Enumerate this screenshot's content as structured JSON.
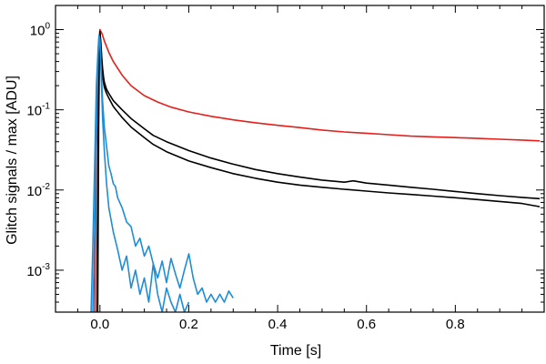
{
  "chart_data": {
    "type": "line",
    "title": "",
    "xlabel": "Time [s]",
    "ylabel": "Glitch signals / max [ADU]",
    "xlim": [
      -0.1,
      1.0
    ],
    "ylim": [
      0.0003,
      2.0
    ],
    "yscale": "log",
    "grid": false,
    "legend": "none",
    "x_ticks": [
      {
        "value": 0.0,
        "label": "0.0"
      },
      {
        "value": 0.2,
        "label": "0.2"
      },
      {
        "value": 0.4,
        "label": "0.4"
      },
      {
        "value": 0.6,
        "label": "0.6"
      },
      {
        "value": 0.8,
        "label": "0.8"
      }
    ],
    "y_ticks": [
      {
        "value": 1.0,
        "base": "10",
        "exp": "0"
      },
      {
        "value": 0.1,
        "base": "10",
        "exp": "-1"
      },
      {
        "value": 0.01,
        "base": "10",
        "exp": "-2"
      },
      {
        "value": 0.001,
        "base": "10",
        "exp": "-3"
      }
    ],
    "series": [
      {
        "color": "#e3201b",
        "x": [
          -0.012,
          -0.008,
          -0.004,
          0.0,
          0.005,
          0.01,
          0.02,
          0.03,
          0.05,
          0.07,
          0.1,
          0.13,
          0.16,
          0.2,
          0.25,
          0.3,
          0.35,
          0.4,
          0.45,
          0.5,
          0.55,
          0.6,
          0.65,
          0.7,
          0.75,
          0.8,
          0.85,
          0.9,
          0.95,
          0.99
        ],
        "y": [
          0.0003,
          0.03,
          0.5,
          1.0,
          0.88,
          0.72,
          0.52,
          0.4,
          0.27,
          0.2,
          0.15,
          0.125,
          0.108,
          0.094,
          0.083,
          0.075,
          0.069,
          0.064,
          0.06,
          0.056,
          0.053,
          0.051,
          0.049,
          0.047,
          0.046,
          0.045,
          0.044,
          0.043,
          0.042,
          0.041
        ]
      },
      {
        "color": "#000000",
        "x": [
          -0.007,
          -0.004,
          -0.002,
          0.0,
          0.002,
          0.004,
          0.006,
          0.008,
          0.01,
          0.015,
          0.02,
          0.03,
          0.05,
          0.07,
          0.1,
          0.12,
          0.15,
          0.2,
          0.25,
          0.3,
          0.35,
          0.4,
          0.45,
          0.5,
          0.55,
          0.57,
          0.6,
          0.65,
          0.7,
          0.75,
          0.8,
          0.85,
          0.9,
          0.95,
          0.99
        ],
        "y": [
          0.0003,
          0.05,
          0.5,
          0.95,
          0.7,
          0.45,
          0.33,
          0.26,
          0.22,
          0.18,
          0.16,
          0.13,
          0.1,
          0.078,
          0.058,
          0.048,
          0.04,
          0.031,
          0.025,
          0.021,
          0.018,
          0.016,
          0.0145,
          0.0133,
          0.0125,
          0.013,
          0.0122,
          0.0115,
          0.0108,
          0.0102,
          0.0096,
          0.009,
          0.0085,
          0.0081,
          0.0078
        ]
      },
      {
        "color": "#000000",
        "x": [
          -0.005,
          -0.003,
          -0.001,
          0.0,
          0.002,
          0.004,
          0.006,
          0.008,
          0.01,
          0.015,
          0.02,
          0.03,
          0.05,
          0.07,
          0.1,
          0.12,
          0.15,
          0.2,
          0.25,
          0.3,
          0.35,
          0.4,
          0.45,
          0.5,
          0.55,
          0.6,
          0.65,
          0.7,
          0.75,
          0.8,
          0.85,
          0.9,
          0.95,
          0.99
        ],
        "y": [
          0.0003,
          0.06,
          0.6,
          0.9,
          0.6,
          0.38,
          0.28,
          0.22,
          0.19,
          0.16,
          0.14,
          0.11,
          0.08,
          0.061,
          0.045,
          0.037,
          0.03,
          0.023,
          0.019,
          0.016,
          0.014,
          0.0125,
          0.0115,
          0.0108,
          0.0102,
          0.0097,
          0.0092,
          0.0088,
          0.0084,
          0.008,
          0.0076,
          0.0072,
          0.0068,
          0.0062
        ]
      },
      {
        "color": "#1f8dd6",
        "x": [
          -0.016,
          -0.012,
          -0.008,
          -0.004,
          -0.002,
          0.0,
          0.003,
          0.006,
          0.01,
          0.015,
          0.02,
          0.025,
          0.03,
          0.035,
          0.04,
          0.05,
          0.06,
          0.07,
          0.08,
          0.09,
          0.1,
          0.11,
          0.12,
          0.13,
          0.14,
          0.15,
          0.16,
          0.17,
          0.18,
          0.19,
          0.2,
          0.21,
          0.22,
          0.23,
          0.24,
          0.25,
          0.26,
          0.27,
          0.28,
          0.29,
          0.3
        ],
        "y": [
          0.0003,
          0.003,
          0.05,
          0.5,
          0.8,
          0.7,
          0.3,
          0.13,
          0.06,
          0.035,
          0.02,
          0.016,
          0.012,
          0.011,
          0.008,
          0.006,
          0.004,
          0.0035,
          0.002,
          0.0025,
          0.0015,
          0.002,
          0.0012,
          0.0008,
          0.0013,
          0.0007,
          0.0014,
          0.0009,
          0.0006,
          0.001,
          0.0016,
          0.0008,
          0.0005,
          0.0006,
          0.0004,
          0.0005,
          0.0004,
          0.0005,
          0.0004,
          0.00055,
          0.00045
        ]
      },
      {
        "color": "#1f8dd6",
        "x": [
          -0.02,
          -0.016,
          -0.012,
          -0.008,
          -0.004,
          -0.002,
          0.0,
          0.003,
          0.006,
          0.01,
          0.015,
          0.02,
          0.03,
          0.04,
          0.05,
          0.06,
          0.07,
          0.08,
          0.09,
          0.1,
          0.11,
          0.12,
          0.13,
          0.14,
          0.15,
          0.16,
          0.17,
          0.18,
          0.19,
          0.2
        ],
        "y": [
          0.0003,
          0.002,
          0.02,
          0.2,
          0.6,
          0.85,
          0.75,
          0.25,
          0.08,
          0.03,
          0.012,
          0.006,
          0.003,
          0.0018,
          0.001,
          0.0015,
          0.0006,
          0.001,
          0.0005,
          0.0008,
          0.0004,
          0.0012,
          0.0005,
          0.0003,
          0.0006,
          0.0004,
          0.0003,
          0.0005,
          0.0003,
          0.0004
        ]
      }
    ]
  }
}
